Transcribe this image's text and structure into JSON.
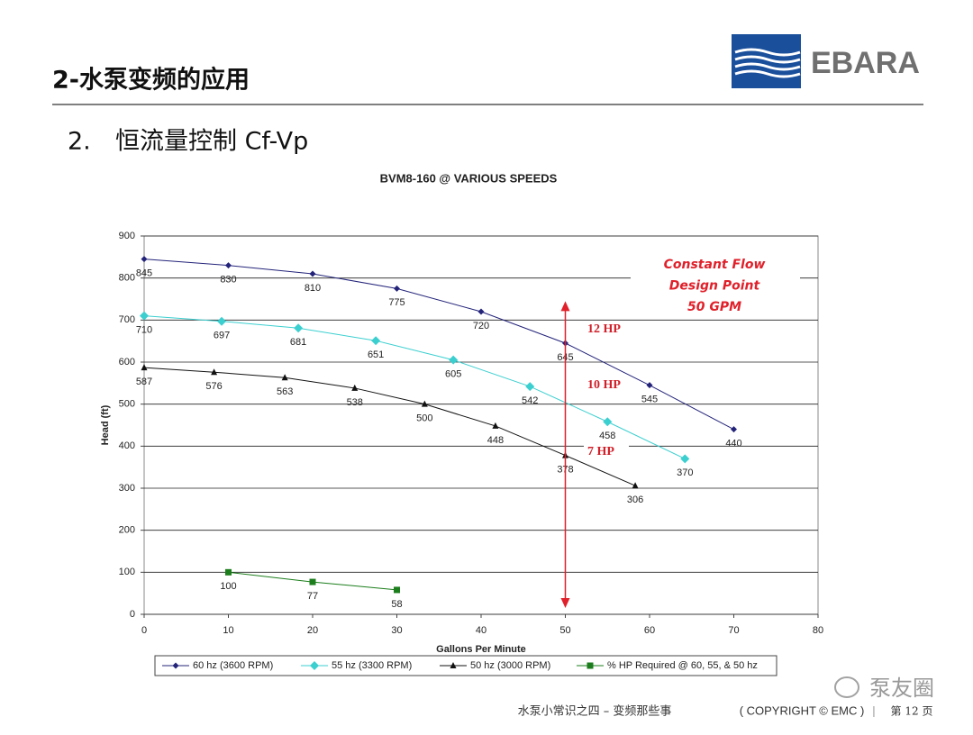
{
  "header": {
    "title": "2-水泵变频的应用",
    "subtitle_number": "2.",
    "subtitle": "恒流量控制 Cf-Vp"
  },
  "logo": {
    "text": "EBARA"
  },
  "chart_data": {
    "type": "line",
    "title": "BVM8-160 @ VARIOUS SPEEDS",
    "x_label": "Gallons Per Minute",
    "y_label": "Head (ft)",
    "xlim": [
      0,
      80
    ],
    "xticks": [
      0,
      10,
      20,
      30,
      40,
      50,
      60,
      70,
      80
    ],
    "ylim": [
      0,
      900
    ],
    "yticks": [
      0,
      100,
      200,
      300,
      400,
      500,
      600,
      700,
      800,
      900
    ],
    "grid": true,
    "legend": "bottom",
    "series": [
      {
        "name": "60 hz (3600 RPM)",
        "color": "#23237a",
        "marker": "diamond",
        "x": [
          0,
          10,
          20,
          30,
          40,
          50,
          60,
          70
        ],
        "values": [
          845,
          830,
          810,
          775,
          720,
          645,
          545,
          440
        ]
      },
      {
        "name": "55 hz (3300 RPM)",
        "color": "#3ccfd0",
        "marker": "diamond",
        "x": [
          0,
          9.2,
          18.3,
          27.5,
          36.7,
          45.8,
          55,
          64.2
        ],
        "values": [
          710,
          697,
          681,
          651,
          605,
          542,
          458,
          370
        ]
      },
      {
        "name": "50 hz (3000 RPM)",
        "color": "#111111",
        "marker": "triangle",
        "x": [
          0,
          8.3,
          16.7,
          25,
          33.3,
          41.7,
          50,
          58.3
        ],
        "values": [
          587,
          576,
          563,
          538,
          500,
          448,
          378,
          306
        ]
      },
      {
        "name": "% HP Required @ 60, 55, & 50 hz",
        "color": "#1b7d1b",
        "marker": "square",
        "x": [
          10,
          20,
          30
        ],
        "values": [
          100,
          77,
          58
        ]
      }
    ],
    "reference_line": {
      "x": 50,
      "y": [
        15,
        745
      ],
      "color": "#e0202a"
    },
    "annotations": {
      "design_point": [
        "Constant Flow",
        "Design Point",
        "50 GPM"
      ],
      "hp_labels": [
        "12 HP",
        "10 HP",
        "7 HP"
      ]
    }
  },
  "footer": {
    "topic": "水泵小常识之四 – 变频那些事",
    "copyright": "( COPYRIGHT © EMC )",
    "separator": "|",
    "page": "第 12 页"
  },
  "watermark": "泵友圈"
}
